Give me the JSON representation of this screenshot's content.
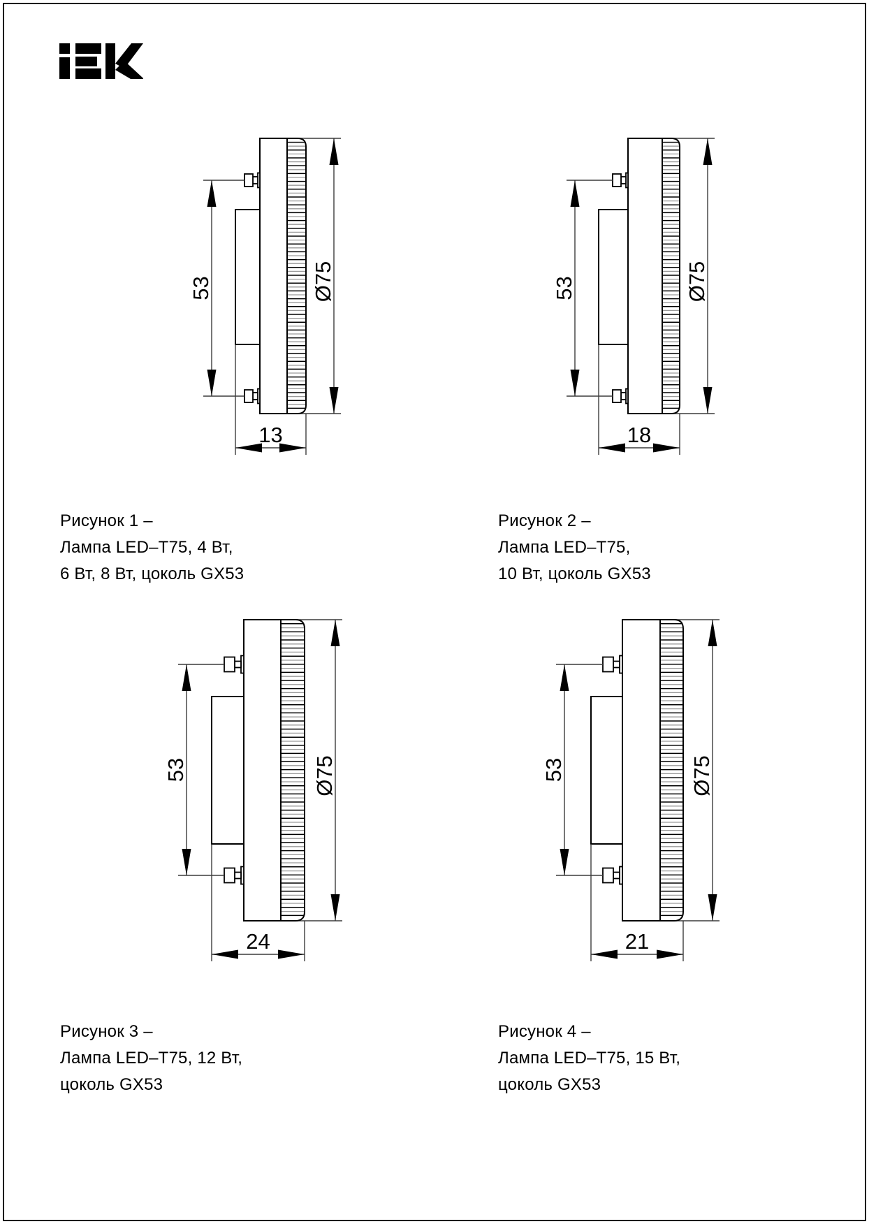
{
  "logo": {
    "brand": "IEK"
  },
  "figures": [
    {
      "caption_lines": [
        "Рисунок 1 –",
        "Лампа LED–T75, 4 Вт,",
        "6 Вт, 8 Вт, цоколь GX53"
      ],
      "dims": {
        "pin_spacing": "53",
        "diameter": "Ø75",
        "thickness": "13"
      }
    },
    {
      "caption_lines": [
        "Рисунок 2 –",
        "Лампа LED–T75,",
        "10 Вт, цоколь GX53"
      ],
      "dims": {
        "pin_spacing": "53",
        "diameter": "Ø75",
        "thickness": "18"
      }
    },
    {
      "caption_lines": [
        "Рисунок 3 –",
        "Лампа LED–T75, 12 Вт,",
        "цоколь GX53"
      ],
      "dims": {
        "pin_spacing": "53",
        "diameter": "Ø75",
        "thickness": "24"
      }
    },
    {
      "caption_lines": [
        "Рисунок 4 –",
        "Лампа LED–T75, 15 Вт,",
        "цоколь GX53"
      ],
      "dims": {
        "pin_spacing": "53",
        "diameter": "Ø75",
        "thickness": "21"
      }
    }
  ]
}
